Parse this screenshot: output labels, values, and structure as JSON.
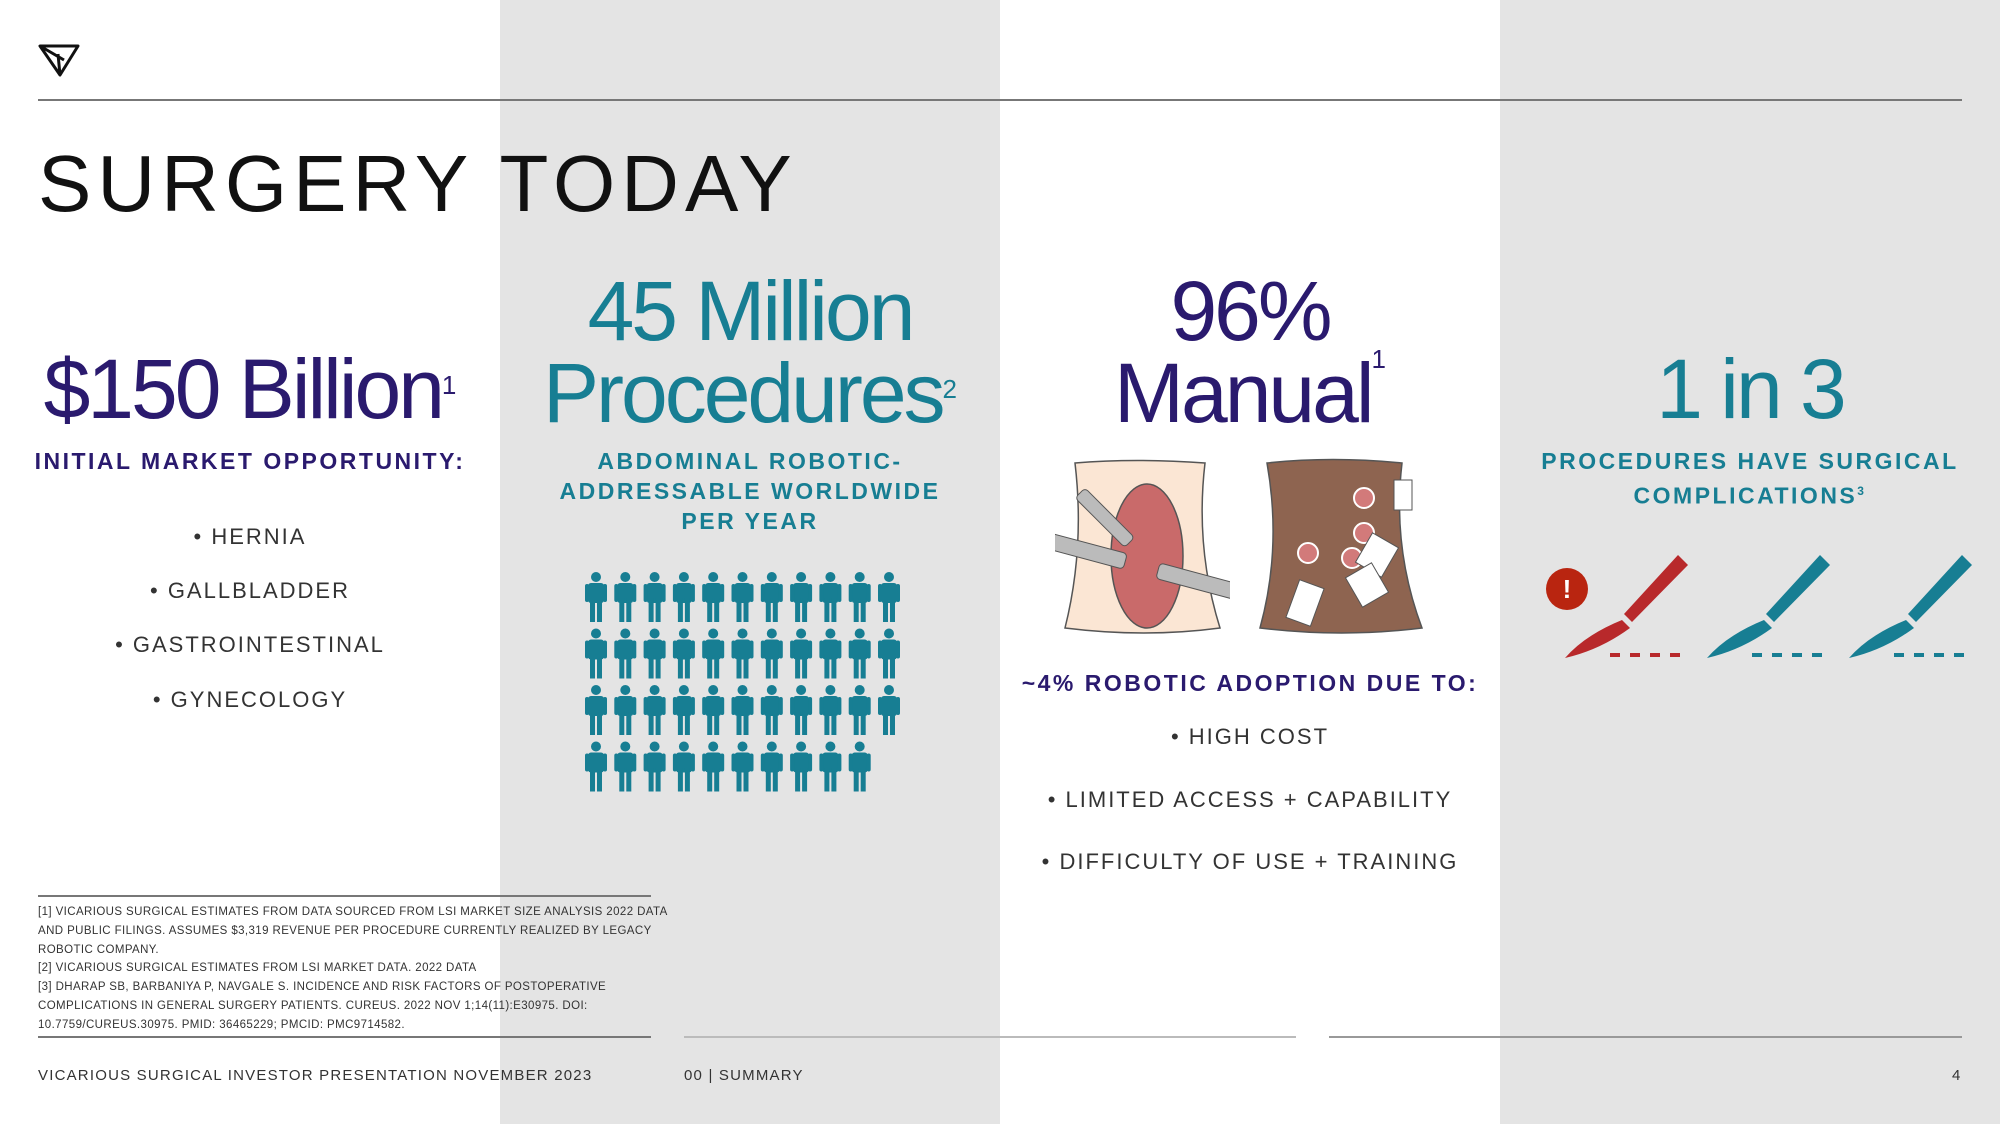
{
  "title": "SURGERY TODAY",
  "colors": {
    "purple": "#2a1a6e",
    "teal": "#177e93",
    "red": "#b8292b",
    "band": "#e4e4e4"
  },
  "logo": {
    "icon": "vicarious-logo-icon"
  },
  "market": {
    "value": "$150 Billion",
    "ref": "1",
    "subtitle": "INITIAL MARKET OPPORTUNITY:",
    "bullets": [
      "• HERNIA",
      "• GALLBLADDER",
      "• GASTROINTESTINAL",
      "• GYNECOLOGY"
    ]
  },
  "procedures": {
    "line1": "45 Million",
    "line2": "Procedures",
    "ref": "2",
    "subtitle_lines": [
      "ABDOMINAL ROBOTIC-",
      "ADDRESSABLE WORLDWIDE",
      "PER YEAR"
    ],
    "icon": "person-icon",
    "rows": [
      11,
      11,
      11,
      10
    ]
  },
  "manual": {
    "line1": "96%",
    "line2": "Manual",
    "ref": "1",
    "subtitle": "~4% ROBOTIC ADOPTION DUE TO:",
    "bullets": [
      "• HIGH COST",
      "• LIMITED ACCESS + CAPABILITY",
      "• DIFFICULTY OF USE + TRAINING"
    ],
    "illustrations": [
      "open-surgery-illustration",
      "laparoscopic-surgery-illustration"
    ]
  },
  "complications": {
    "value": "1 in 3",
    "subtitle_lines": [
      "PROCEDURES HAVE SURGICAL",
      "COMPLICATIONS"
    ],
    "ref": "3",
    "icons": [
      "scalpel-red-icon",
      "scalpel-teal-icon",
      "scalpel-teal-icon"
    ],
    "alert": "!"
  },
  "footnotes": [
    "[1] VICARIOUS SURGICAL ESTIMATES FROM DATA SOURCED FROM LSI MARKET SIZE ANALYSIS 2022 DATA AND PUBLIC FILINGS. ASSUMES $3,319 REVENUE PER PROCEDURE CURRENTLY REALIZED BY LEGACY ROBOTIC COMPANY.",
    "[2] VICARIOUS SURGICAL ESTIMATES FROM LSI MARKET DATA. 2022 DATA",
    "[3] DHARAP SB, BARBANIYA P, NAVGALE S. INCIDENCE AND RISK FACTORS OF POSTOPERATIVE COMPLICATIONS IN GENERAL SURGERY PATIENTS. CUREUS. 2022 NOV 1;14(11):E30975. DOI: 10.7759/CUREUS.30975. PMID: 36465229; PMCID: PMC9714582."
  ],
  "footer": {
    "left": "VICARIOUS SURGICAL INVESTOR PRESENTATION NOVEMBER 2023",
    "section": "00 | SUMMARY",
    "page": "4"
  }
}
